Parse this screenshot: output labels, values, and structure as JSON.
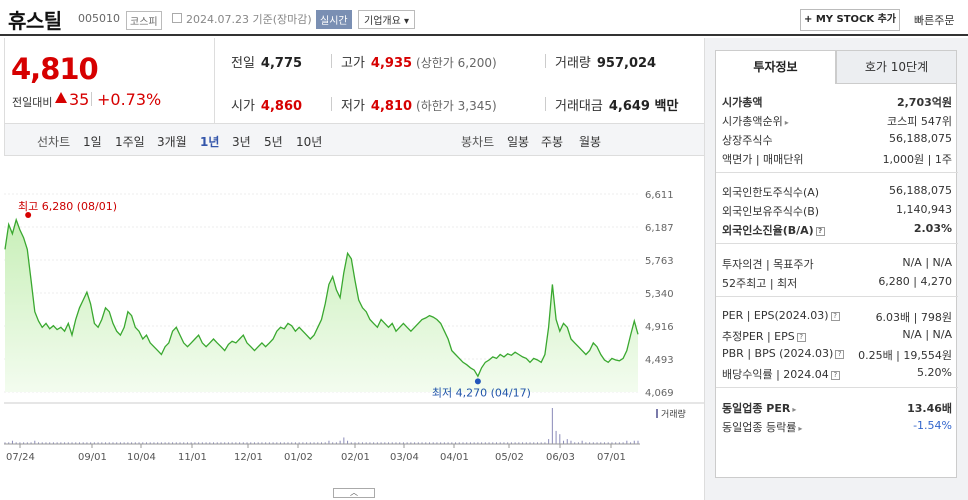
{
  "header": {
    "stock_name": "휴스틸",
    "stock_code": "005010",
    "market": "코스피",
    "date": "2024.07.23 기준(장마감)",
    "realtime_label": "실시간",
    "corp_info_label": "기업개요 ▾",
    "mystock_label": "+ MY STOCK 추가",
    "quick_order_label": "빠른주문"
  },
  "price": {
    "current": "4,810",
    "vs_label": "전일대비",
    "diff": "35",
    "rate": "+0.73%",
    "color": "#d60000"
  },
  "stats": {
    "prev_label": "전일",
    "prev": "4,775",
    "high_label": "고가",
    "high": "4,935",
    "upper_limit": "(상한가 6,200)",
    "volume_label": "거래량",
    "volume": "957,024",
    "open_label": "시가",
    "open": "4,860",
    "low_label": "저가",
    "low": "4,810",
    "lower_limit": "(하한가 3,345)",
    "amount_label": "거래대금",
    "amount": "4,649 백만"
  },
  "chart_tabs": {
    "line_label": "선차트",
    "periods": [
      "1일",
      "1주일",
      "3개월",
      "1년",
      "3년",
      "5년",
      "10년"
    ],
    "active_period": "1년",
    "candle_label": "봉차트",
    "candle_periods": [
      "일봉",
      "주봉",
      "월봉"
    ]
  },
  "chart_data": {
    "type": "area",
    "x_tick_labels": [
      "07/24",
      "09/01",
      "10/04",
      "11/01",
      "12/01",
      "01/02",
      "02/01",
      "03/04",
      "04/01",
      "05/02",
      "06/03",
      "07/01"
    ],
    "y_tick_labels": [
      "6,611",
      "6,187",
      "5,763",
      "5,340",
      "4,916",
      "4,493",
      "4,069"
    ],
    "ylim": [
      4069,
      6611
    ],
    "max_annotation": "최고 6,280 (08/01)",
    "min_annotation": "최저 4,270 (04/17)",
    "volume_label": "거래량",
    "line_color": "#3aa830",
    "fill_color": "#d9f5cf",
    "series": [
      {
        "values": [
          5900,
          6220,
          6100,
          6280,
          6150,
          6050,
          5900,
          5500,
          5100,
          4980,
          4900,
          4950,
          4880,
          4920,
          4870,
          4900,
          4850,
          4950,
          4800,
          5000,
          5150,
          5250,
          5350,
          5200,
          4950,
          4900,
          5000,
          5150,
          5100,
          4950,
          4850,
          4800,
          4900,
          5100,
          5050,
          4900,
          4850,
          4750,
          4800,
          4700,
          4650,
          4600,
          4550,
          4650,
          4700,
          4850,
          4900,
          4800,
          4700,
          4650,
          4700,
          4750,
          4800,
          4700,
          4650,
          4700,
          4750,
          4700,
          4650,
          4600,
          4680,
          4720,
          4700,
          4750,
          4800,
          4700,
          4650,
          4600,
          4650,
          4700,
          4650,
          4700,
          4750,
          4850,
          4900,
          4880,
          4950,
          4920,
          4850,
          4900,
          4850,
          4800,
          4750,
          4800,
          4900,
          5000,
          5200,
          5450,
          5550,
          5380,
          5280,
          5600,
          5850,
          5780,
          5500,
          5250,
          5150,
          5100,
          5000,
          4950,
          4900,
          5000,
          4950,
          4900,
          4950,
          4850,
          4900,
          4950,
          4900,
          4850,
          4900,
          4950,
          5000,
          5020,
          5050,
          5030,
          5000,
          4950,
          4850,
          4750,
          4600,
          4550,
          4500,
          4450,
          4420,
          4380,
          4350,
          4270,
          4380,
          4450,
          4480,
          4520,
          4500,
          4550,
          4520,
          4560,
          4540,
          4580,
          4550,
          4520,
          4500,
          4450,
          4500,
          4480,
          4450,
          4550,
          4900,
          5450,
          5000,
          4850,
          4950,
          4900,
          4750,
          4700,
          4650,
          4600,
          4550,
          4600,
          4700,
          4650,
          4550,
          4480,
          4450,
          4500,
          4480,
          4470,
          4500,
          4600,
          4800,
          4980,
          4810
        ]
      }
    ],
    "volume": [
      1,
      1,
      2,
      1,
      1,
      1,
      1,
      1,
      2,
      1,
      1,
      1,
      1,
      1,
      1,
      1,
      1,
      1,
      1,
      1,
      1,
      1,
      1,
      1,
      1,
      1,
      1,
      1,
      1,
      1,
      1,
      1,
      1,
      1,
      1,
      1,
      1,
      1,
      1,
      1,
      1,
      1,
      1,
      1,
      1,
      1,
      1,
      1,
      1,
      1,
      1,
      1,
      1,
      1,
      1,
      1,
      1,
      1,
      1,
      1,
      1,
      1,
      1,
      1,
      1,
      1,
      1,
      1,
      1,
      1,
      1,
      1,
      1,
      1,
      1,
      1,
      1,
      1,
      1,
      1,
      1,
      1,
      1,
      1,
      1,
      1,
      1,
      2,
      1,
      1,
      2,
      4,
      2,
      1,
      1,
      1,
      1,
      1,
      1,
      1,
      1,
      1,
      1,
      1,
      1,
      1,
      1,
      1,
      1,
      1,
      1,
      1,
      1,
      1,
      1,
      1,
      1,
      1,
      1,
      1,
      1,
      1,
      1,
      1,
      1,
      1,
      1,
      1,
      1,
      1,
      1,
      1,
      1,
      1,
      1,
      1,
      1,
      1,
      1,
      1,
      1,
      1,
      1,
      1,
      1,
      1,
      3,
      22,
      8,
      6,
      2,
      3,
      2,
      1,
      1,
      2,
      1,
      1,
      1,
      1,
      1,
      1,
      1,
      1,
      1,
      1,
      1,
      2,
      1,
      2,
      2
    ]
  },
  "right_panel": {
    "tab_invest": "투자정보",
    "tab_quote": "호가 10단계",
    "market_cap_label": "시가총액",
    "market_cap": "2,703억원",
    "market_cap_rank_label": "시가총액순위",
    "market_cap_rank": "코스피 547위",
    "shares_label": "상장주식수",
    "shares": "56,188,075",
    "par_label": "액면가 | 매매단위",
    "par": "1,000원 | 1주",
    "foreign_limit_label": "외국인한도주식수(A)",
    "foreign_limit": "56,188,075",
    "foreign_hold_label": "외국인보유주식수(B)",
    "foreign_hold": "1,140,943",
    "foreign_rate_label": "외국인소진율(B/A)",
    "foreign_rate": "2.03%",
    "opinion_label": "투자의견 | 목표주가",
    "opinion": "N/A | N/A",
    "week52_label": "52주최고 | 최저",
    "week52": "6,280 | 4,270",
    "per_label": "PER | EPS(2024.03)",
    "per": "6.03배 | 798원",
    "est_per_label": "추정PER | EPS",
    "est_per": "N/A | N/A",
    "pbr_label": "PBR | BPS (2024.03)",
    "pbr": "0.25배 | 19,554원",
    "dividend_label": "배당수익률 | 2024.04",
    "dividend": "5.20%",
    "industry_per_label": "동일업종 PER",
    "industry_per": "13.46배",
    "industry_rate_label": "동일업종 등락률",
    "industry_rate": "-1.54%"
  }
}
